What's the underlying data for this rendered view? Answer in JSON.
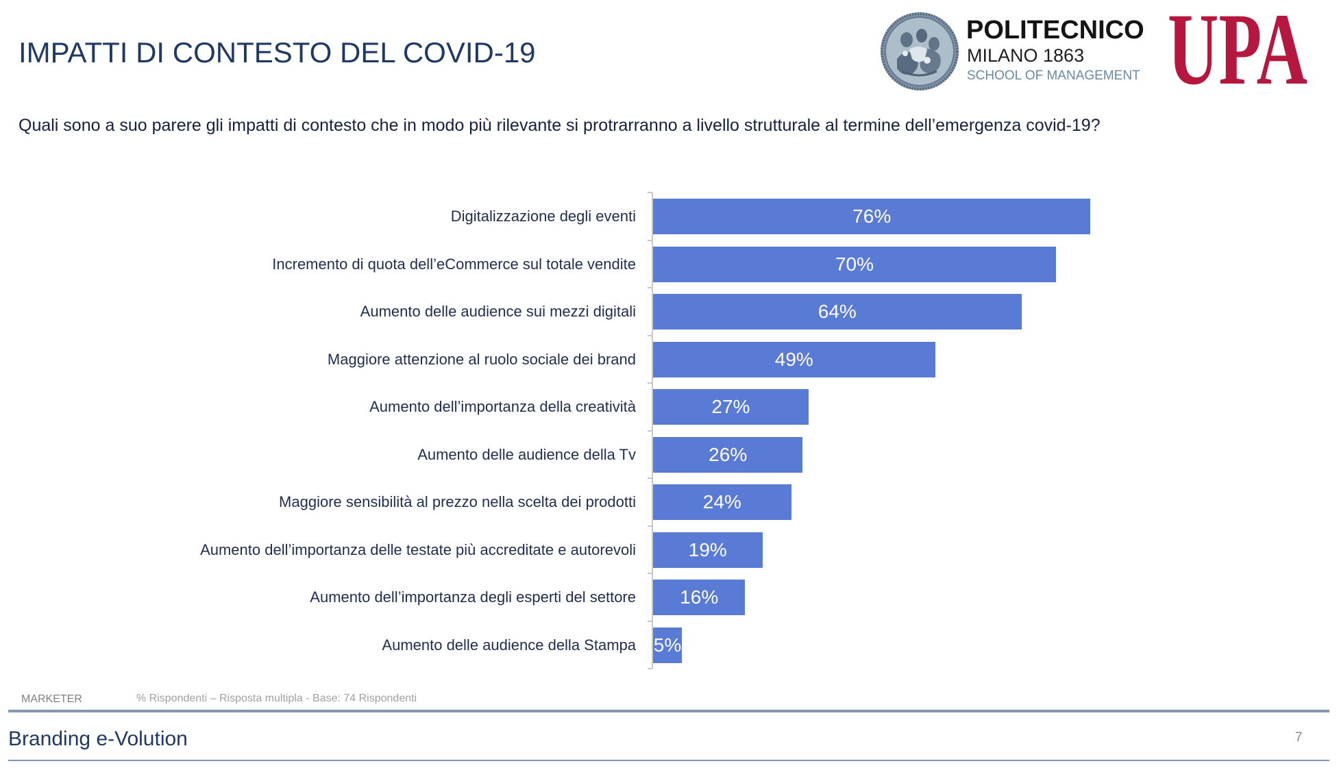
{
  "slide": {
    "title": "IMPATTI DI CONTESTO DEL COVID-19",
    "question": "Quali sono a suo parere gli impatti di contesto che in modo più rilevante si protrarranno a livello strutturale al termine dell’emergenza covid-19?"
  },
  "logos": {
    "politecnico": {
      "name": "POLITECNICO",
      "city_year": "MILANO 1863",
      "school": "SCHOOL OF MANAGEMENT",
      "icon": "university-seal-icon"
    },
    "upa": {
      "text": "UPA",
      "color": "#b5173f"
    }
  },
  "colors": {
    "title": "#1f3864",
    "accent": "#5a7bd5",
    "rule": "#8497b0"
  },
  "chart_data": {
    "type": "bar",
    "orientation": "horizontal",
    "categories": [
      "Digitalizzazione degli eventi",
      "Incremento di quota dell’eCommerce sul totale vendite",
      "Aumento delle audience sui mezzi digitali",
      "Maggiore attenzione al ruolo sociale dei brand",
      "Aumento dell’importanza della creatività",
      "Aumento delle audience della Tv",
      "Maggiore sensibilità al prezzo nella scelta dei prodotti",
      "Aumento dell’importanza delle testate più accreditate e autorevoli",
      "Aumento dell’importanza degli esperti del settore",
      "Aumento delle audience della Stampa"
    ],
    "values": [
      76,
      70,
      64,
      49,
      27,
      26,
      24,
      19,
      16,
      5
    ],
    "data_labels": [
      "76%",
      "70%",
      "64%",
      "49%",
      "27%",
      "26%",
      "24%",
      "19%",
      "16%",
      "5%"
    ],
    "xlim": [
      0,
      100
    ],
    "x_axis_visible": false,
    "grid": false,
    "legend": "none",
    "bar_color": "#5a7bd5"
  },
  "footer": {
    "segment": "MARKETER",
    "note": "% Rispondenti – Risposta multipla - Base: 74 Rispondenti",
    "brand": "Branding e-Volution",
    "page_number": "7"
  }
}
